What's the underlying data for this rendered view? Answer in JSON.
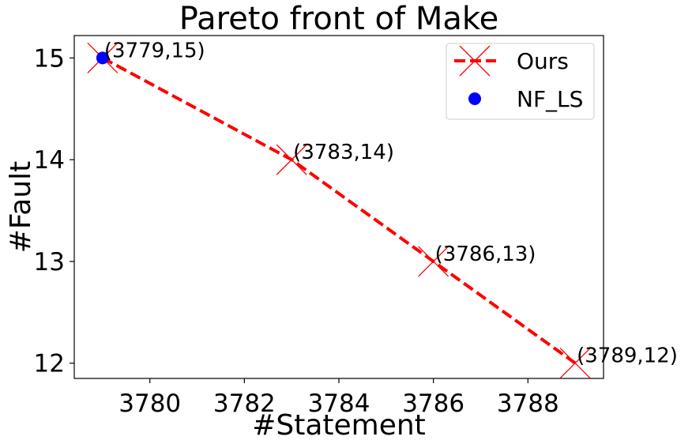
{
  "chart_data": {
    "type": "line",
    "title": "Pareto front of Make",
    "xlabel": "#Statement",
    "ylabel": "#Fault",
    "xlim": [
      3778.4,
      3789.6
    ],
    "ylim": [
      11.85,
      15.22
    ],
    "xticks": [
      3780,
      3782,
      3784,
      3786,
      3788
    ],
    "yticks": [
      12,
      13,
      14,
      15
    ],
    "grid": false,
    "legend_position": "top-right",
    "series": [
      {
        "name": "Ours",
        "style": "dashed-line-x-markers",
        "color": "#ff0000",
        "x": [
          3779,
          3783,
          3786,
          3789
        ],
        "y": [
          15,
          14,
          13,
          12
        ]
      },
      {
        "name": "NF_LS",
        "style": "scatter-circle",
        "color": "#0000ff",
        "x": [
          3779
        ],
        "y": [
          15
        ]
      }
    ],
    "annotations": [
      "(3779,15)",
      "(3783,14)",
      "(3786,13)",
      "(3789,12)"
    ]
  }
}
